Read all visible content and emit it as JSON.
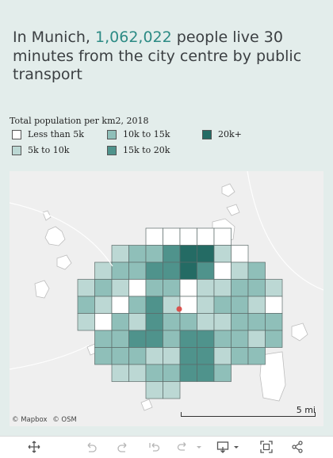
{
  "headline": {
    "prefix": "In Munich, ",
    "highlight": "1,062,022",
    "suffix": " people live 30 minutes from the city centre by public transport",
    "highlight_color": "#2d8b85"
  },
  "legend": {
    "title": "Total population per km2, 2018",
    "items": [
      {
        "label": "Less than 5k",
        "color": "#ffffff"
      },
      {
        "label": "5k to 10k",
        "color": "#bcd8d4"
      },
      {
        "label": "10k to 15k",
        "color": "#8fbfb9"
      },
      {
        "label": "15k to 20k",
        "color": "#4f938c"
      },
      {
        "label": "20k+",
        "color": "#246b64"
      }
    ]
  },
  "map": {
    "attribution": [
      "© Mapbox",
      "© OSM"
    ],
    "scale_label": "5 mi",
    "centre_marker_color": "#d9534f",
    "grid_cols": 12,
    "grid_rows": 10,
    "cells": [
      [
        null,
        null,
        null,
        null,
        0,
        0,
        0,
        0,
        0,
        null,
        null,
        null
      ],
      [
        null,
        null,
        1,
        2,
        2,
        3,
        4,
        4,
        1,
        0,
        null,
        null
      ],
      [
        null,
        1,
        2,
        2,
        3,
        3,
        4,
        3,
        0,
        1,
        2,
        null
      ],
      [
        1,
        2,
        1,
        0,
        2,
        2,
        0,
        1,
        1,
        2,
        2,
        1
      ],
      [
        2,
        1,
        0,
        2,
        3,
        1,
        0,
        1,
        2,
        2,
        1,
        0
      ],
      [
        1,
        0,
        2,
        1,
        3,
        2,
        2,
        1,
        1,
        2,
        2,
        2
      ],
      [
        null,
        2,
        2,
        3,
        3,
        2,
        3,
        3,
        2,
        2,
        1,
        2
      ],
      [
        null,
        2,
        2,
        2,
        1,
        1,
        3,
        3,
        1,
        2,
        2,
        null
      ],
      [
        null,
        null,
        1,
        1,
        2,
        2,
        3,
        3,
        2,
        null,
        null,
        null
      ],
      [
        null,
        null,
        null,
        null,
        1,
        1,
        null,
        null,
        null,
        null,
        null,
        null
      ]
    ]
  },
  "toolbar": {
    "icons": [
      "move-icon",
      "undo-icon",
      "redo-icon",
      "revert-icon",
      "refresh-icon",
      "download-icon",
      "fullscreen-icon",
      "share-icon"
    ]
  }
}
